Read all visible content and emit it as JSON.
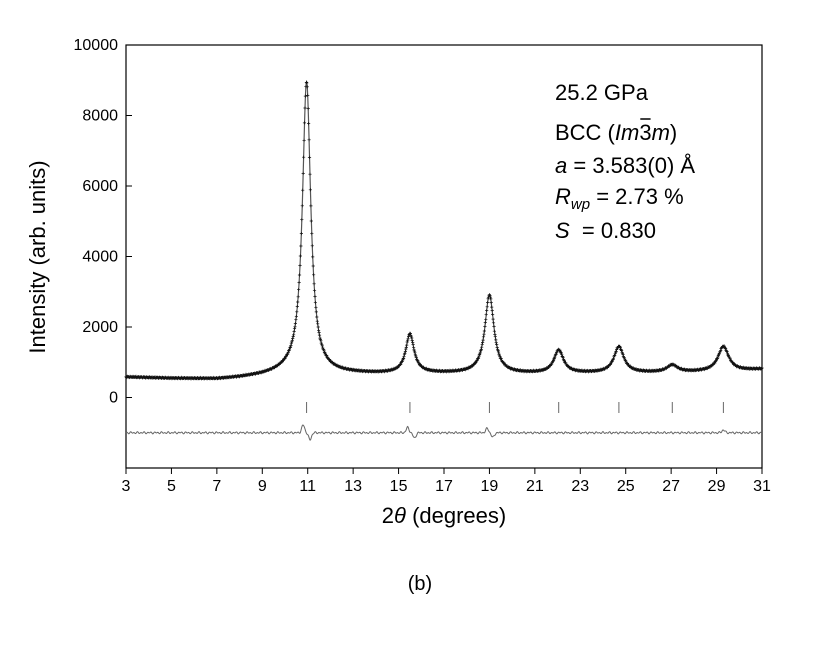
{
  "chart_data": {
    "type": "line",
    "x_label_prefix": "2",
    "x_label_symbol": "θ",
    "x_label_suffix": " (degrees)",
    "ylabel": "Intensity (arb. units)",
    "xlim": [
      3,
      31
    ],
    "ylim": [
      -2000,
      10000
    ],
    "x_ticks": [
      "3",
      "5",
      "7",
      "9",
      "11",
      "13",
      "15",
      "17",
      "19",
      "21",
      "23",
      "25",
      "27",
      "29",
      "31"
    ],
    "y_ticks": [
      "0",
      "2000",
      "4000",
      "6000",
      "8000",
      "10000"
    ],
    "baseline_profile": {
      "x": [
        3,
        5,
        7,
        8,
        9,
        10,
        10.3,
        12,
        14,
        16,
        18,
        20,
        22,
        24,
        26,
        28,
        30,
        31
      ],
      "y": [
        580,
        540,
        520,
        560,
        620,
        700,
        720,
        680,
        670,
        680,
        680,
        670,
        680,
        690,
        700,
        720,
        760,
        800
      ]
    },
    "peaks": [
      {
        "x": 10.95,
        "height": 8250,
        "width": 0.22
      },
      {
        "x": 15.5,
        "height": 1100,
        "width": 0.22
      },
      {
        "x": 19.0,
        "height": 2220,
        "width": 0.24
      },
      {
        "x": 22.05,
        "height": 650,
        "width": 0.25
      },
      {
        "x": 24.7,
        "height": 740,
        "width": 0.26
      },
      {
        "x": 27.05,
        "height": 200,
        "width": 0.28
      },
      {
        "x": 29.3,
        "height": 700,
        "width": 0.28
      }
    ],
    "reflection_positions": [
      10.95,
      15.5,
      19.0,
      22.05,
      24.7,
      27.05,
      29.3
    ],
    "difference_curve": {
      "offset": -1000,
      "wiggles": [
        {
          "x": 10.8,
          "amp": 220
        },
        {
          "x": 11.1,
          "amp": -200
        },
        {
          "x": 15.4,
          "amp": 150
        },
        {
          "x": 15.7,
          "amp": -150
        },
        {
          "x": 18.9,
          "amp": 120
        },
        {
          "x": 19.15,
          "amp": -130
        },
        {
          "x": 29.3,
          "amp": 80
        }
      ]
    }
  },
  "annotation": {
    "pressure": "25.2 GPa",
    "phase_prefix": "BCC (",
    "phase_italic_1": "Im",
    "phase_bar_digit": "3",
    "phase_italic_2": "m",
    "phase_suffix": ")",
    "lattice_var": "a",
    "lattice_val": " = 3.583(0) Å",
    "rwp_var": "R",
    "rwp_sub": "wp",
    "rwp_val": " = 2.73 %",
    "s_var": "S",
    "s_val": "  = 0.830"
  },
  "caption": "(b)",
  "colors": {
    "observed": "#111111",
    "calculated": "#555555",
    "difference": "#666666",
    "tick_marks": "#666666"
  }
}
